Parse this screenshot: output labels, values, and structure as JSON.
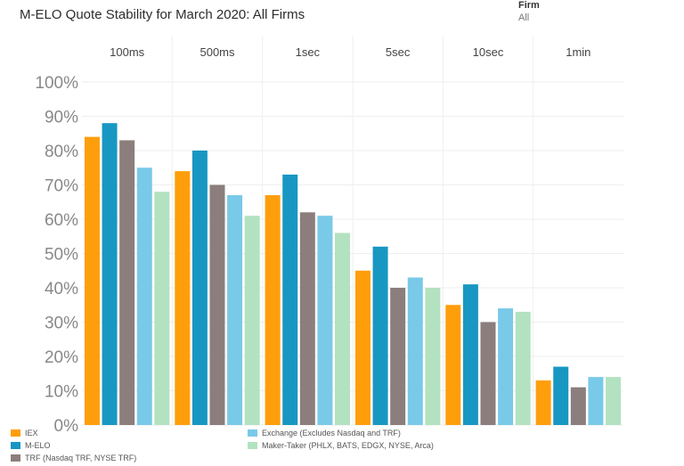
{
  "title": "M-ELO Quote Stability for March 2020: All Firms",
  "filter": {
    "label": "Firm",
    "value": "All"
  },
  "colors": {
    "IEX": "#ff9e0b",
    "M-ELO": "#1897c2",
    "TRF": "#8c7e7d",
    "Exchange": "#79c9e8",
    "Maker-Taker": "#b3e2c0"
  },
  "chart_data": {
    "type": "bar",
    "categories": [
      "100ms",
      "500ms",
      "1sec",
      "5sec",
      "10sec",
      "1min"
    ],
    "ylim": [
      0,
      100
    ],
    "yticks": [
      "0%",
      "10%",
      "20%",
      "30%",
      "40%",
      "50%",
      "60%",
      "70%",
      "80%",
      "90%",
      "100%"
    ],
    "series": [
      {
        "name": "IEX",
        "color_key": "IEX",
        "values": [
          84,
          74,
          67,
          45,
          35,
          13
        ]
      },
      {
        "name": "M-ELO",
        "color_key": "M-ELO",
        "values": [
          88,
          80,
          73,
          52,
          41,
          17
        ]
      },
      {
        "name": "TRF (Nasdaq TRF, NYSE TRF)",
        "color_key": "TRF",
        "values": [
          83,
          70,
          62,
          40,
          30,
          11
        ]
      },
      {
        "name": "Exchange (Excludes Nasdaq and TRF)",
        "color_key": "Exchange",
        "values": [
          75,
          67,
          61,
          43,
          34,
          14
        ]
      },
      {
        "name": "Maker-Taker (PHLX, BATS, EDGX, NYSE, Arca)",
        "color_key": "Maker-Taker",
        "values": [
          68,
          61,
          56,
          40,
          33,
          14
        ]
      }
    ],
    "grid": true,
    "legend_position": "bottom"
  }
}
